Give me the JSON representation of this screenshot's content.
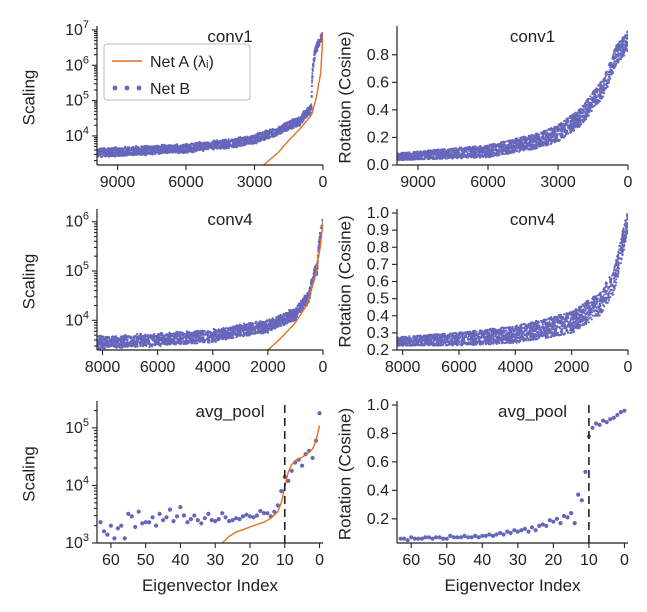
{
  "colors": {
    "net_a": "#E07020",
    "net_b": "#6666BB",
    "axis": "#222222",
    "vline": "#222222"
  },
  "legend": {
    "net_a": "Net A (λᵢ)",
    "net_b": "Net B"
  },
  "chart_data": [
    {
      "id": "p1",
      "type": "scatter",
      "title": "conv1",
      "ylabel": "Scaling",
      "xlabel": "",
      "xlim": [
        9900,
        0
      ],
      "ylim": [
        1500,
        10000000
      ],
      "yscale": "log",
      "xticks": [
        9000,
        6000,
        3000,
        0
      ],
      "xtick_labels": [
        "9000",
        "6000",
        "3000",
        "0"
      ],
      "yticks": [
        10000,
        100000,
        1000000,
        10000000
      ],
      "ytick_labels": [
        {
          "b": "10",
          "e": "4"
        },
        {
          "b": "10",
          "e": "5"
        },
        {
          "b": "10",
          "e": "6"
        },
        {
          "b": "10",
          "e": "7"
        }
      ],
      "scatter_trend": {
        "xs": [
          9900,
          6000,
          4000,
          3000,
          2000,
          1000,
          500,
          0
        ],
        "ys": [
          3300,
          4400,
          6200,
          8000,
          13000,
          26000,
          60000,
          7000000
        ]
      },
      "line": {
        "x": [
          2600,
          2000,
          1500,
          1000,
          500,
          300,
          100,
          0
        ],
        "y": [
          1500,
          3200,
          7500,
          16000,
          40000,
          120000,
          600000,
          8000000
        ]
      },
      "series": [
        {
          "name": "Net A (λᵢ)"
        },
        {
          "name": "Net B"
        }
      ]
    },
    {
      "id": "p2",
      "type": "scatter",
      "title": "conv1",
      "ylabel": "Rotation (Cosine)",
      "xlabel": "",
      "xlim": [
        9900,
        0
      ],
      "ylim": [
        0,
        0.98
      ],
      "yscale": "linear",
      "xticks": [
        9000,
        6000,
        3000,
        0
      ],
      "xtick_labels": [
        "9000",
        "6000",
        "3000",
        "0"
      ],
      "yticks": [
        0,
        0.2,
        0.4,
        0.6,
        0.8
      ],
      "ytick_labels": [
        "0.0",
        "0.2",
        "0.4",
        "0.6",
        "0.8"
      ],
      "scatter_trend": {
        "xs": [
          9900,
          6000,
          4000,
          3000,
          2000,
          1000,
          500,
          0
        ],
        "ys": [
          0.06,
          0.1,
          0.17,
          0.23,
          0.35,
          0.58,
          0.8,
          0.9
        ]
      },
      "series": [
        {
          "name": "Net B"
        }
      ]
    },
    {
      "id": "p3",
      "type": "scatter",
      "title": "conv4",
      "ylabel": "Scaling",
      "xlabel": "",
      "xlim": [
        8200,
        0
      ],
      "ylim": [
        2500,
        1500000
      ],
      "yscale": "log",
      "xticks": [
        8000,
        6000,
        4000,
        2000,
        0
      ],
      "xtick_labels": [
        "8000",
        "6000",
        "4000",
        "2000",
        "0"
      ],
      "yticks": [
        10000,
        100000,
        1000000
      ],
      "ytick_labels": [
        {
          "b": "10",
          "e": "4"
        },
        {
          "b": "10",
          "e": "5"
        },
        {
          "b": "10",
          "e": "6"
        }
      ],
      "scatter_trend": {
        "xs": [
          8200,
          6000,
          4000,
          2000,
          1000,
          500,
          200,
          0
        ],
        "ys": [
          3600,
          4000,
          4800,
          7500,
          13000,
          30000,
          120000,
          900000
        ]
      },
      "line": {
        "x": [
          2000,
          1500,
          1000,
          600,
          300,
          100,
          0
        ],
        "y": [
          2500,
          4500,
          9000,
          20000,
          70000,
          300000,
          1000000
        ]
      },
      "series": [
        {
          "name": "Net A (λᵢ)"
        },
        {
          "name": "Net B"
        }
      ]
    },
    {
      "id": "p4",
      "type": "scatter",
      "title": "conv4",
      "ylabel": "Rotation (Cosine)",
      "xlabel": "",
      "xlim": [
        8200,
        0
      ],
      "ylim": [
        0.2,
        1.0
      ],
      "yscale": "linear",
      "xticks": [
        8000,
        6000,
        4000,
        2000,
        0
      ],
      "xtick_labels": [
        "8000",
        "6000",
        "4000",
        "2000",
        "0"
      ],
      "yticks": [
        0.2,
        0.3,
        0.4,
        0.5,
        0.6,
        0.7,
        0.8,
        0.9,
        1.0
      ],
      "ytick_labels": [
        "0.2",
        "0.3",
        "0.4",
        "0.5",
        "0.6",
        "0.7",
        "0.8",
        "0.9",
        "1.0"
      ],
      "scatter_trend": {
        "xs": [
          8200,
          6000,
          4000,
          2000,
          1000,
          500,
          0
        ],
        "ys": [
          0.25,
          0.265,
          0.29,
          0.36,
          0.47,
          0.6,
          0.96
        ]
      },
      "series": [
        {
          "name": "Net B"
        }
      ]
    },
    {
      "id": "p5",
      "type": "scatter",
      "title": "avg_pool",
      "ylabel": "Scaling",
      "xlabel": "Eigenvector Index",
      "xlim": [
        64,
        -1
      ],
      "ylim": [
        1000,
        250000
      ],
      "yscale": "log",
      "xticks": [
        60,
        50,
        40,
        30,
        20,
        10,
        0
      ],
      "xtick_labels": [
        "60",
        "50",
        "40",
        "30",
        "20",
        "10",
        "0"
      ],
      "yticks": [
        1000,
        10000,
        100000
      ],
      "ytick_labels": [
        {
          "b": "10",
          "e": "3"
        },
        {
          "b": "10",
          "e": "4"
        },
        {
          "b": "10",
          "e": "5"
        }
      ],
      "vline": 10,
      "points": {
        "x": [
          63,
          62,
          61,
          60,
          59,
          58,
          57,
          56,
          55,
          54,
          53,
          52,
          51,
          50,
          49,
          48,
          47,
          46,
          45,
          44,
          43,
          42,
          41,
          40,
          39,
          38,
          37,
          36,
          35,
          34,
          33,
          32,
          31,
          30,
          29,
          28,
          27,
          26,
          25,
          24,
          23,
          22,
          21,
          20,
          19,
          18,
          17,
          16,
          15,
          14,
          13,
          12,
          11,
          10,
          9,
          8,
          7,
          6,
          5,
          4,
          3,
          2,
          1,
          0
        ],
        "y": [
          2300,
          1600,
          1400,
          2000,
          1200,
          1800,
          2000,
          1200,
          3200,
          2900,
          1900,
          3500,
          2200,
          2300,
          2300,
          2800,
          2000,
          3200,
          2500,
          2800,
          3800,
          2400,
          2900,
          4200,
          3000,
          2300,
          2600,
          3000,
          2500,
          2200,
          2700,
          3200,
          2500,
          2400,
          2600,
          3300,
          2800,
          2400,
          2500,
          2700,
          2600,
          2900,
          3100,
          2900,
          2800,
          3000,
          3600,
          3300,
          3300,
          2900,
          3500,
          4500,
          8000,
          14000,
          12000,
          18000,
          25000,
          28000,
          22000,
          35000,
          40000,
          30000,
          60000,
          180000
        ]
      },
      "line": {
        "x": [
          28,
          26,
          24,
          22,
          20,
          18,
          16,
          14,
          12,
          11,
          10,
          9,
          8,
          7,
          6,
          5,
          4,
          3,
          2,
          1,
          0
        ],
        "y": [
          1000,
          1300,
          1550,
          1700,
          1900,
          2100,
          2300,
          2700,
          3500,
          5000,
          9500,
          17000,
          23000,
          27000,
          29000,
          31000,
          34000,
          38000,
          43000,
          60000,
          110000
        ]
      },
      "series": [
        {
          "name": "Net A (λᵢ)"
        },
        {
          "name": "Net B"
        }
      ]
    },
    {
      "id": "p6",
      "type": "scatter",
      "title": "avg_pool",
      "ylabel": "Rotation (Cosine)",
      "xlabel": "Eigenvector Index",
      "xlim": [
        64,
        -1
      ],
      "ylim": [
        0.03,
        1.0
      ],
      "yscale": "linear",
      "xticks": [
        60,
        50,
        40,
        30,
        20,
        10,
        0
      ],
      "xtick_labels": [
        "60",
        "50",
        "40",
        "30",
        "20",
        "10",
        "0"
      ],
      "yticks": [
        0.2,
        0.4,
        0.6,
        0.8,
        1.0
      ],
      "ytick_labels": [
        "0.2",
        "0.4",
        "0.6",
        "0.8",
        "1.0"
      ],
      "vline": 10,
      "points": {
        "x": [
          63,
          62,
          61,
          60,
          59,
          58,
          57,
          56,
          55,
          54,
          53,
          52,
          51,
          50,
          49,
          48,
          47,
          46,
          45,
          44,
          43,
          42,
          41,
          40,
          39,
          38,
          37,
          36,
          35,
          34,
          33,
          32,
          31,
          30,
          29,
          28,
          27,
          26,
          25,
          24,
          23,
          22,
          21,
          20,
          19,
          18,
          17,
          16,
          15,
          14,
          13,
          12,
          11,
          10,
          9,
          8,
          7,
          6,
          5,
          4,
          3,
          2,
          1,
          0
        ],
        "y": [
          0.06,
          0.06,
          0.05,
          0.07,
          0.06,
          0.06,
          0.06,
          0.07,
          0.07,
          0.06,
          0.07,
          0.07,
          0.06,
          0.06,
          0.08,
          0.07,
          0.07,
          0.07,
          0.08,
          0.07,
          0.07,
          0.08,
          0.07,
          0.08,
          0.08,
          0.09,
          0.08,
          0.09,
          0.1,
          0.09,
          0.11,
          0.1,
          0.12,
          0.11,
          0.12,
          0.13,
          0.11,
          0.14,
          0.12,
          0.15,
          0.16,
          0.15,
          0.19,
          0.18,
          0.2,
          0.17,
          0.22,
          0.21,
          0.24,
          0.17,
          0.37,
          0.33,
          0.53,
          0.78,
          0.84,
          0.87,
          0.86,
          0.89,
          0.88,
          0.9,
          0.91,
          0.93,
          0.95,
          0.96
        ]
      },
      "series": [
        {
          "name": "Net B"
        }
      ]
    }
  ]
}
